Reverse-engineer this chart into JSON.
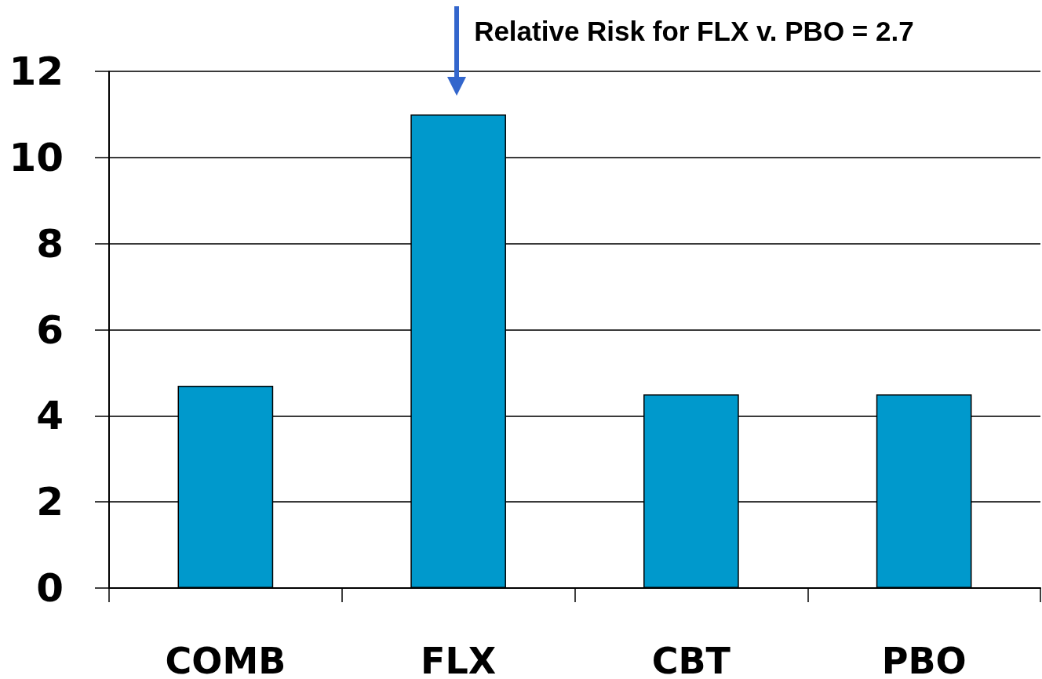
{
  "chart_data": {
    "type": "bar",
    "categories": [
      "COMB",
      "FLX",
      "CBT",
      "PBO"
    ],
    "values": [
      4.7,
      11,
      4.5,
      4.5
    ],
    "color": "#0099cc",
    "ylim": [
      0,
      12
    ],
    "yticks": [
      0,
      2,
      4,
      6,
      8,
      10,
      12
    ],
    "grid": "y",
    "annotations": [
      {
        "text": "Relative Risk for FLX v. PBO = 2.7",
        "x": "FLX",
        "y": 11
      }
    ]
  }
}
